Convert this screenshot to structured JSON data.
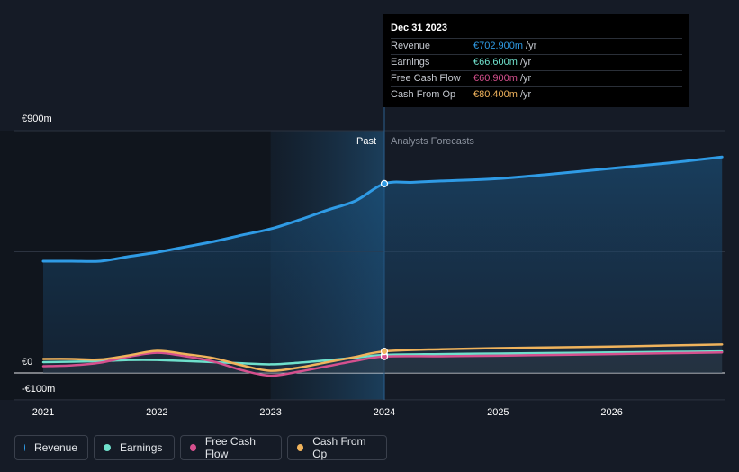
{
  "tooltip": {
    "date": "Dec 31 2023",
    "rows": [
      {
        "label": "Revenue",
        "value": "€702.900m",
        "unit": "/yr",
        "color": "#2f9be5"
      },
      {
        "label": "Earnings",
        "value": "€66.600m",
        "unit": "/yr",
        "color": "#6fe0cc"
      },
      {
        "label": "Free Cash Flow",
        "value": "€60.900m",
        "unit": "/yr",
        "color": "#d6508e"
      },
      {
        "label": "Cash From Op",
        "value": "€80.400m",
        "unit": "/yr",
        "color": "#f0b35c"
      }
    ]
  },
  "legend": [
    {
      "label": "Revenue",
      "color": "#2f9be5"
    },
    {
      "label": "Earnings",
      "color": "#6fe0cc"
    },
    {
      "label": "Free Cash Flow",
      "color": "#d6508e"
    },
    {
      "label": "Cash From Op",
      "color": "#f0b35c"
    }
  ],
  "chart_data": {
    "type": "line",
    "y_unit": "€m",
    "ylim": [
      -100,
      900
    ],
    "y_tick_labels": [
      {
        "value": 900,
        "label": "€900m"
      },
      {
        "value": 0,
        "label": "€0"
      },
      {
        "value": -100,
        "label": "-€100m"
      }
    ],
    "x_range": [
      2020.875,
      2026.97
    ],
    "x_tick_labels": [
      {
        "value": 2021,
        "label": "2021"
      },
      {
        "value": 2022,
        "label": "2022"
      },
      {
        "value": 2023,
        "label": "2023"
      },
      {
        "value": 2024,
        "label": "2024"
      },
      {
        "value": 2025,
        "label": "2025"
      },
      {
        "value": 2026,
        "label": "2026"
      }
    ],
    "past_label": "Past",
    "forecast_label": "Analysts Forecasts",
    "divider_x": 2024,
    "highlight_start_x": 2023,
    "grid": true,
    "series": [
      {
        "name": "Revenue",
        "color": "#2f9be5",
        "fill": true,
        "points": [
          [
            2021,
            415
          ],
          [
            2021.25,
            415
          ],
          [
            2021.5,
            415
          ],
          [
            2021.75,
            432
          ],
          [
            2022,
            448
          ],
          [
            2022.25,
            468
          ],
          [
            2022.5,
            488
          ],
          [
            2022.75,
            512
          ],
          [
            2023,
            535
          ],
          [
            2023.25,
            568
          ],
          [
            2023.5,
            605
          ],
          [
            2023.75,
            640
          ],
          [
            2024,
            703
          ],
          [
            2024.25,
            708
          ],
          [
            2024.5,
            713
          ],
          [
            2025,
            722
          ],
          [
            2025.5,
            740
          ],
          [
            2026,
            760
          ],
          [
            2026.5,
            780
          ],
          [
            2026.97,
            802
          ]
        ]
      },
      {
        "name": "Earnings",
        "color": "#6fe0cc",
        "fill": false,
        "points": [
          [
            2021,
            40
          ],
          [
            2021.5,
            44
          ],
          [
            2021.75,
            48
          ],
          [
            2022,
            48
          ],
          [
            2022.5,
            40
          ],
          [
            2022.75,
            36
          ],
          [
            2023,
            32
          ],
          [
            2023.25,
            38
          ],
          [
            2023.5,
            47
          ],
          [
            2023.75,
            57
          ],
          [
            2024,
            67
          ],
          [
            2024.5,
            70
          ],
          [
            2025,
            72
          ],
          [
            2025.5,
            74
          ],
          [
            2026,
            76
          ],
          [
            2026.5,
            78
          ],
          [
            2026.97,
            80
          ]
        ]
      },
      {
        "name": "Free Cash Flow",
        "color": "#d6508e",
        "fill": false,
        "points": [
          [
            2021,
            25
          ],
          [
            2021.25,
            28
          ],
          [
            2021.5,
            38
          ],
          [
            2021.75,
            60
          ],
          [
            2022,
            75
          ],
          [
            2022.25,
            62
          ],
          [
            2022.5,
            42
          ],
          [
            2022.75,
            10
          ],
          [
            2023,
            -10
          ],
          [
            2023.25,
            5
          ],
          [
            2023.5,
            25
          ],
          [
            2023.75,
            45
          ],
          [
            2024,
            61
          ],
          [
            2024.5,
            62
          ],
          [
            2025,
            64
          ],
          [
            2025.5,
            67
          ],
          [
            2026,
            70
          ],
          [
            2026.5,
            73
          ],
          [
            2026.97,
            76
          ]
        ]
      },
      {
        "name": "Cash From Op",
        "color": "#f0b35c",
        "fill": false,
        "points": [
          [
            2021,
            52
          ],
          [
            2021.25,
            52
          ],
          [
            2021.5,
            50
          ],
          [
            2021.75,
            65
          ],
          [
            2022,
            82
          ],
          [
            2022.25,
            70
          ],
          [
            2022.5,
            55
          ],
          [
            2022.75,
            28
          ],
          [
            2023,
            8
          ],
          [
            2023.25,
            20
          ],
          [
            2023.5,
            40
          ],
          [
            2023.75,
            60
          ],
          [
            2024,
            80
          ],
          [
            2024.5,
            88
          ],
          [
            2025,
            92
          ],
          [
            2025.5,
            95
          ],
          [
            2026,
            98
          ],
          [
            2026.5,
            102
          ],
          [
            2026.97,
            106
          ]
        ]
      }
    ]
  }
}
